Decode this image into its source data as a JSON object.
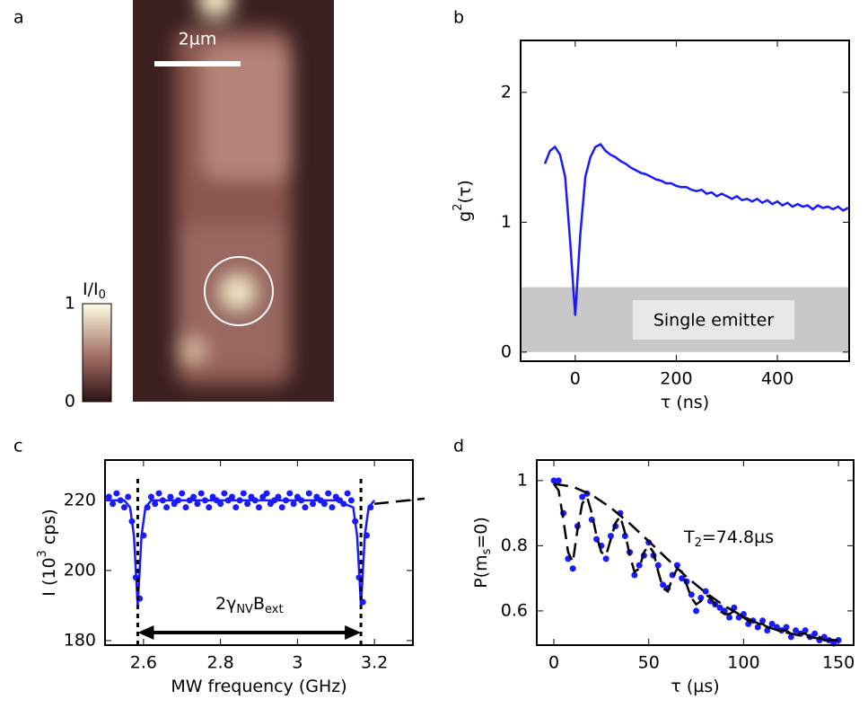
{
  "chart_data": [
    {
      "type": "image",
      "title": "a",
      "scale_bar": "2µm",
      "colorbar_label": [
        {
          "text": "I/I"
        },
        {
          "sub": "0"
        }
      ],
      "clim": [
        0,
        1
      ],
      "cticks": [
        0,
        1
      ]
    },
    {
      "type": "line",
      "title": "b",
      "xlabel": [
        {
          "text": "τ (ns)"
        }
      ],
      "ylabel": [
        {
          "text": "g"
        },
        {
          "sup": "2"
        },
        {
          "text": "(τ)"
        }
      ],
      "xlim": [
        -108,
        542
      ],
      "xticks": [
        0,
        200,
        400
      ],
      "ylim": [
        -0.07,
        2.4
      ],
      "yticks": [
        0,
        1,
        2
      ],
      "shade": [
        0,
        0.5
      ],
      "shade_label": "Single emitter",
      "series": [
        {
          "color": "#1a1aff",
          "style": "line",
          "x": [
            -60,
            -50,
            -40,
            -30,
            -20,
            -10,
            0,
            10,
            20,
            30,
            40,
            50,
            60,
            70,
            80,
            90,
            100,
            110,
            120,
            130,
            140,
            150,
            160,
            170,
            180,
            190,
            200,
            210,
            220,
            230,
            240,
            250,
            260,
            270,
            280,
            290,
            300,
            310,
            320,
            330,
            340,
            350,
            360,
            370,
            380,
            390,
            400,
            410,
            420,
            430,
            440,
            450,
            460,
            470,
            480,
            490,
            500,
            510,
            520,
            530,
            540
          ],
          "values": [
            1.45,
            1.55,
            1.58,
            1.52,
            1.35,
            0.85,
            0.28,
            0.9,
            1.35,
            1.5,
            1.58,
            1.6,
            1.55,
            1.52,
            1.5,
            1.47,
            1.45,
            1.42,
            1.4,
            1.38,
            1.37,
            1.35,
            1.33,
            1.32,
            1.3,
            1.3,
            1.28,
            1.27,
            1.27,
            1.25,
            1.24,
            1.25,
            1.22,
            1.23,
            1.2,
            1.22,
            1.2,
            1.18,
            1.2,
            1.17,
            1.18,
            1.16,
            1.18,
            1.15,
            1.17,
            1.14,
            1.16,
            1.13,
            1.15,
            1.12,
            1.14,
            1.12,
            1.13,
            1.1,
            1.13,
            1.11,
            1.12,
            1.1,
            1.12,
            1.09,
            1.11
          ]
        }
      ]
    },
    {
      "type": "scatter",
      "title": "c",
      "xlabel": [
        {
          "text": "MW frequency (GHz)"
        }
      ],
      "ylabel": [
        {
          "text": "I (10"
        },
        {
          "sup": "3"
        },
        {
          "text": " cps)"
        }
      ],
      "xlim": [
        2.5,
        3.3
      ],
      "xticks": [
        2.6,
        2.8,
        3,
        3.2
      ],
      "ylim": [
        178.7,
        231.5
      ],
      "yticks": [
        180,
        200,
        220
      ],
      "markers": [
        2.585,
        3.165
      ],
      "annotation": [
        {
          "text": "2γ"
        },
        {
          "sub": "NV"
        },
        {
          "text": "B"
        },
        {
          "sub": "ext"
        }
      ],
      "series": [
        {
          "color": "#1a1aff",
          "style": "markers",
          "x": [
            2.51,
            2.52,
            2.53,
            2.54,
            2.55,
            2.56,
            2.57,
            2.58,
            2.59,
            2.6,
            2.61,
            2.62,
            2.63,
            2.64,
            2.65,
            2.66,
            2.67,
            2.68,
            2.69,
            2.7,
            2.71,
            2.72,
            2.73,
            2.74,
            2.75,
            2.76,
            2.77,
            2.78,
            2.79,
            2.8,
            2.81,
            2.82,
            2.83,
            2.84,
            2.85,
            2.86,
            2.87,
            2.88,
            2.89,
            2.9,
            2.91,
            2.92,
            2.93,
            2.94,
            2.95,
            2.96,
            2.97,
            2.98,
            2.99,
            3.0,
            3.01,
            3.02,
            3.03,
            3.04,
            3.05,
            3.06,
            3.07,
            3.08,
            3.09,
            3.1,
            3.11,
            3.12,
            3.13,
            3.14,
            3.15,
            3.16,
            3.17,
            3.18,
            3.19
          ],
          "values": [
            221,
            219,
            222,
            220,
            218,
            221,
            214,
            198,
            192,
            210,
            218,
            221,
            219,
            222,
            220,
            218,
            221,
            219,
            220,
            222,
            218,
            220,
            221,
            219,
            222,
            220,
            218,
            221,
            220,
            219,
            222,
            220,
            221,
            218,
            220,
            222,
            219,
            221,
            220,
            218,
            221,
            222,
            219,
            220,
            221,
            218,
            220,
            222,
            219,
            221,
            220,
            218,
            222,
            219,
            221,
            220,
            219,
            222,
            218,
            221,
            220,
            219,
            222,
            220,
            214,
            198,
            191,
            210,
            218
          ]
        },
        {
          "color": "#1a1aff",
          "style": "line",
          "x": [
            2.5,
            2.55,
            2.565,
            2.575,
            2.58,
            2.585,
            2.59,
            2.595,
            2.605,
            2.62,
            2.7,
            2.9,
            3.1,
            3.145,
            3.155,
            3.16,
            3.165,
            3.17,
            3.175,
            3.185,
            3.2
          ],
          "values": [
            220,
            220,
            218,
            210,
            200,
            190,
            200,
            210,
            218,
            220,
            220,
            220,
            220,
            218,
            210,
            200,
            190,
            200,
            210,
            218,
            220
          ]
        },
        {
          "color": "#000000",
          "style": "dashed",
          "x": [
            3.2,
            3.33
          ],
          "values": [
            219,
            220.5
          ]
        }
      ]
    },
    {
      "type": "scatter",
      "title": "d",
      "xlabel": [
        {
          "text": "τ (µs)"
        }
      ],
      "ylabel": [
        {
          "text": "P(m"
        },
        {
          "sub": "s"
        },
        {
          "text": "=0)"
        }
      ],
      "xlim": [
        -9,
        158
      ],
      "xticks": [
        0,
        50,
        100,
        150
      ],
      "ylim": [
        0.495,
        1.063
      ],
      "yticks": [
        0.6,
        0.8,
        1
      ],
      "annotation": [
        {
          "text": "T"
        },
        {
          "sub": "2"
        },
        {
          "text": "=74.8µs"
        }
      ],
      "series": [
        {
          "color": "#1a1aff",
          "style": "markers",
          "x": [
            0,
            2.5,
            5,
            7.5,
            10,
            12.5,
            15,
            17.5,
            20,
            22.5,
            25,
            27.5,
            30,
            32.5,
            35,
            37.5,
            40,
            42.5,
            45,
            47.5,
            50,
            52.5,
            55,
            57.5,
            60,
            62.5,
            65,
            67.5,
            70,
            72.5,
            75,
            77.5,
            80,
            82.5,
            85,
            87.5,
            90,
            92.5,
            95,
            97.5,
            100,
            102.5,
            105,
            107.5,
            110,
            112.5,
            115,
            117.5,
            120,
            122.5,
            125,
            127.5,
            130,
            132.5,
            135,
            137.5,
            140,
            142.5,
            145,
            147.5,
            150
          ],
          "values": [
            1.0,
            1.0,
            0.9,
            0.76,
            0.73,
            0.86,
            0.95,
            0.96,
            0.88,
            0.82,
            0.8,
            0.76,
            0.83,
            0.86,
            0.9,
            0.83,
            0.78,
            0.71,
            0.74,
            0.77,
            0.81,
            0.77,
            0.74,
            0.68,
            0.67,
            0.71,
            0.74,
            0.7,
            0.69,
            0.65,
            0.6,
            0.64,
            0.66,
            0.63,
            0.62,
            0.61,
            0.6,
            0.58,
            0.61,
            0.58,
            0.59,
            0.56,
            0.57,
            0.55,
            0.57,
            0.54,
            0.56,
            0.55,
            0.54,
            0.55,
            0.52,
            0.54,
            0.53,
            0.54,
            0.52,
            0.53,
            0.51,
            0.52,
            0.51,
            0.5,
            0.51
          ]
        },
        {
          "color": "#000000",
          "style": "dashed",
          "x": [
            0,
            2.5,
            5,
            7.5,
            10,
            12.5,
            15,
            17.5,
            20,
            22.5,
            25,
            27.5,
            30,
            32.5,
            35,
            37.5,
            40,
            42.5,
            45,
            47.5,
            50,
            52.5,
            55,
            57.5,
            60,
            62.5,
            65,
            67.5,
            70,
            72.5,
            75,
            77.5,
            80,
            82.5,
            85,
            87.5,
            90,
            92.5,
            95,
            97.5,
            100,
            102.5,
            105,
            107.5,
            110,
            112.5,
            115,
            117.5,
            120,
            122.5,
            125,
            127.5,
            130,
            132.5,
            135,
            137.5,
            140,
            142.5,
            145,
            147.5,
            150
          ],
          "values": [
            0.99,
            0.97,
            0.88,
            0.78,
            0.75,
            0.85,
            0.93,
            0.95,
            0.9,
            0.83,
            0.78,
            0.77,
            0.82,
            0.87,
            0.89,
            0.84,
            0.77,
            0.72,
            0.73,
            0.78,
            0.8,
            0.78,
            0.72,
            0.67,
            0.66,
            0.7,
            0.73,
            0.72,
            0.68,
            0.64,
            0.62,
            0.63,
            0.65,
            0.64,
            0.62,
            0.6,
            0.59,
            0.59,
            0.6,
            0.59,
            0.58,
            0.57,
            0.56,
            0.56,
            0.56,
            0.55,
            0.55,
            0.54,
            0.54,
            0.54,
            0.53,
            0.53,
            0.53,
            0.53,
            0.52,
            0.52,
            0.52,
            0.51,
            0.51,
            0.51,
            0.51
          ]
        },
        {
          "color": "#000000",
          "style": "dashed",
          "x": [
            0,
            10,
            20,
            30,
            40,
            50,
            60,
            70,
            80,
            90,
            100,
            110,
            120,
            130,
            140,
            150
          ],
          "values": [
            0.99,
            0.981,
            0.956,
            0.917,
            0.868,
            0.814,
            0.758,
            0.704,
            0.656,
            0.615,
            0.582,
            0.556,
            0.537,
            0.524,
            0.515,
            0.509
          ]
        }
      ]
    }
  ]
}
